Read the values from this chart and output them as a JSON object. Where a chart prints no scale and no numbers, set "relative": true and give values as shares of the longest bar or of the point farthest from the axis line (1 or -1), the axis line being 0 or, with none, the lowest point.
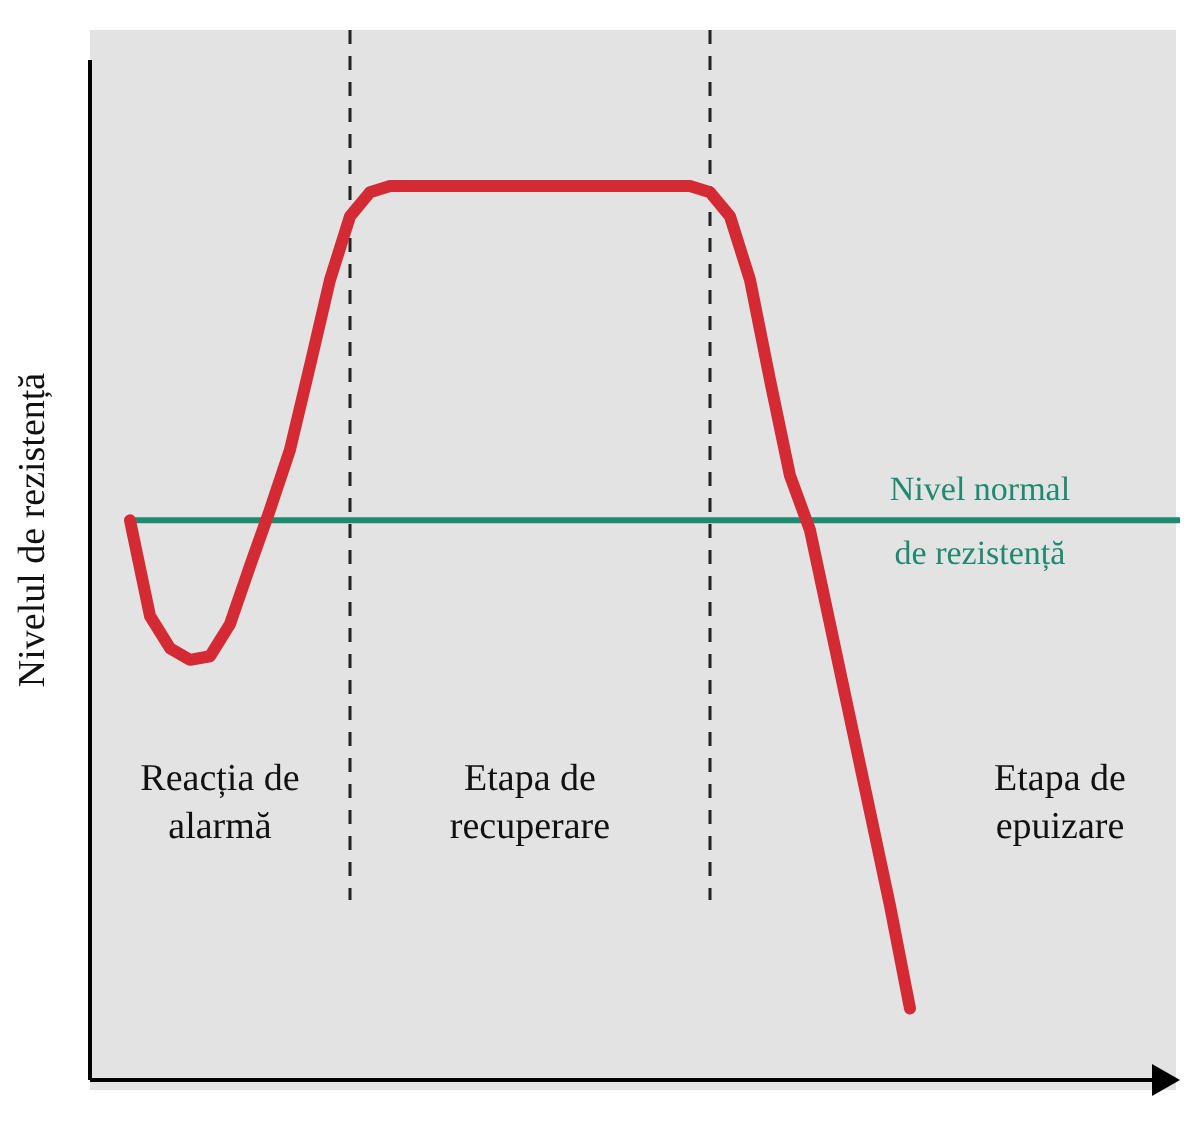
{
  "chart_data": {
    "type": "line",
    "relative": true,
    "ylabel": "Nivelul de rezistență",
    "categories": [
      null,
      null,
      null,
      null,
      null,
      null,
      null,
      null,
      null,
      null,
      null,
      null,
      null,
      null,
      null,
      null,
      null,
      null,
      null,
      null,
      null,
      null,
      null,
      null,
      null,
      null,
      null,
      null,
      null,
      null,
      null,
      null,
      null,
      null,
      null,
      null,
      null,
      null,
      null,
      null
    ],
    "series": [
      {
        "color": "#d42a34",
        "values": [
          0.626,
          0.519,
          0.483,
          0.47,
          0.474,
          0.51,
          0.575,
          0.638,
          0.705,
          0.799,
          0.895,
          0.966,
          0.993,
          1,
          1,
          1,
          1,
          1,
          1,
          1,
          1,
          1,
          1,
          1,
          1,
          1,
          1,
          1,
          1,
          0.993,
          0.966,
          0.895,
          0.783,
          0.676,
          0.615,
          0.51,
          0.405,
          0.3,
          0.195,
          0.08
        ]
      }
    ],
    "ref_lines": [
      {
        "axis": "y",
        "value": 0.626,
        "label": "Nivel normal de rezistență",
        "color": "#1f8a70"
      }
    ],
    "annotations": [
      "Reacția de alarmă",
      "Etapa de recuperare",
      "Etapa de epuizare"
    ],
    "tick_labels": false
  }
}
